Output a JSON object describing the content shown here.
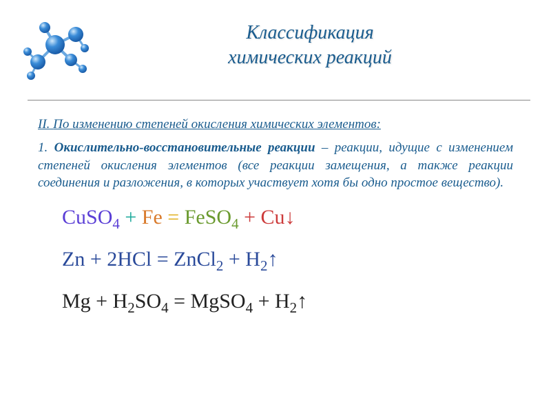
{
  "title": {
    "line1": "Классификация",
    "line2": "химических реакций"
  },
  "section": {
    "heading_prefix": "II.",
    "heading_text": "По изменению степеней окисления химических элементов:",
    "body_number": "1. ",
    "body_term": "Окислительно-восстановительные реакции",
    "body_rest": " – реакции, идущие с изменением степеней окисления элементов (все реакции замещения, а также реакции соединения и разложения, в которых участвует хотя бы одно простое вещество)."
  },
  "equations": {
    "eq1": {
      "parts": [
        {
          "text": "CuSO",
          "color": "c-blue"
        },
        {
          "text": "4",
          "color": "c-blue",
          "sub": true
        },
        {
          "text": " + ",
          "color": "c-teal"
        },
        {
          "text": "Fe",
          "color": "c-orange"
        },
        {
          "text": " = ",
          "color": "c-yellow"
        },
        {
          "text": "FeSO",
          "color": "c-green"
        },
        {
          "text": "4",
          "color": "c-green",
          "sub": true
        },
        {
          "text": " + ",
          "color": "c-red"
        },
        {
          "text": "Cu↓",
          "color": "c-red"
        }
      ]
    },
    "eq2": {
      "parts": [
        {
          "text": "Zn + 2HCl = ZnCl",
          "color": "c-navy"
        },
        {
          "text": "2",
          "color": "c-navy",
          "sub": true
        },
        {
          "text": " + H",
          "color": "c-navy"
        },
        {
          "text": "2",
          "color": "c-navy",
          "sub": true
        },
        {
          "text": "↑",
          "color": "c-navy"
        }
      ]
    },
    "eq3": {
      "parts": [
        {
          "text": "Mg + H",
          "color": "c-black"
        },
        {
          "text": "2",
          "color": "c-black",
          "sub": true
        },
        {
          "text": "SO",
          "color": "c-black"
        },
        {
          "text": "4",
          "color": "c-black",
          "sub": true
        },
        {
          "text": " = MgSO",
          "color": "c-black"
        },
        {
          "text": "4",
          "color": "c-black",
          "sub": true
        },
        {
          "text": " + H",
          "color": "c-black"
        },
        {
          "text": "2",
          "color": "c-black",
          "sub": true
        },
        {
          "text": "↑",
          "color": "c-black"
        }
      ]
    }
  },
  "colors": {
    "title_color": "#1a5c8e",
    "body_color": "#1a5c8e",
    "divider_color": "#888888",
    "background": "#ffffff"
  },
  "molecule": {
    "atom_color": "#2b7cd3",
    "atom_highlight": "#a8d4f5",
    "bond_color": "#6aa8e0"
  }
}
